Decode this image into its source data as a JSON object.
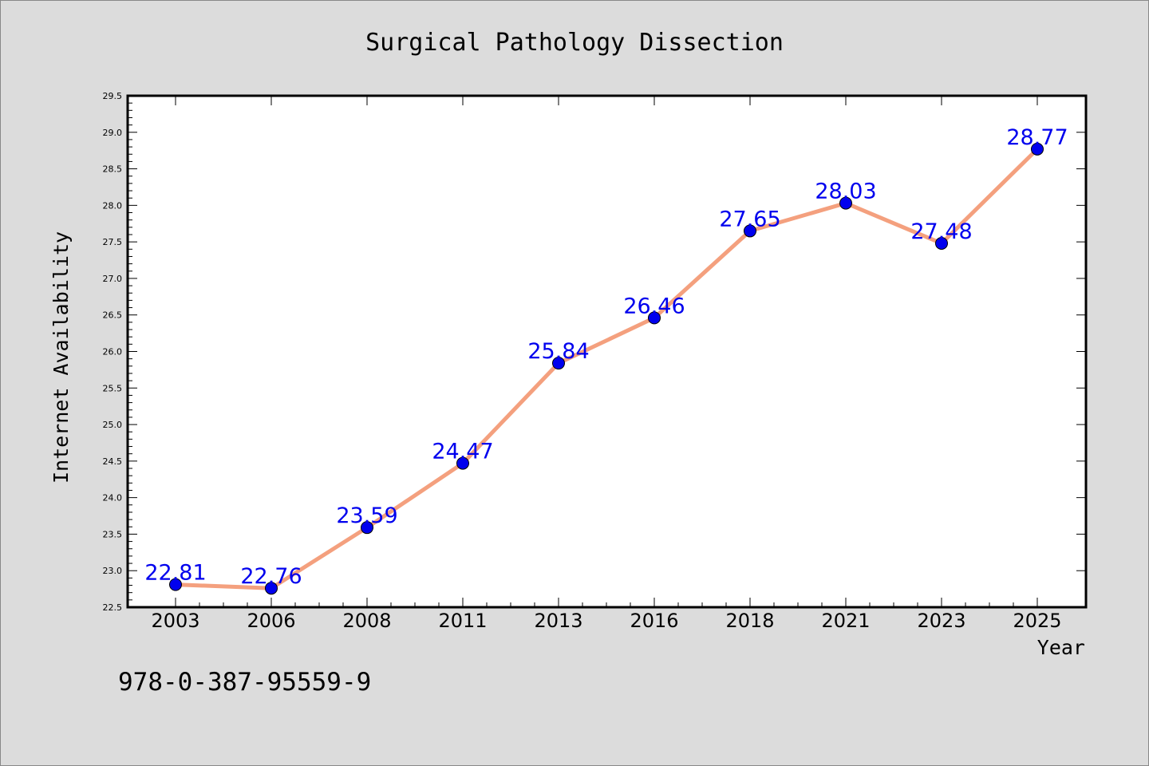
{
  "chart_data": {
    "type": "line",
    "title": "Surgical Pathology Dissection",
    "xlabel": "Year",
    "ylabel": "Internet Availability",
    "categories": [
      "2003",
      "2006",
      "2008",
      "2011",
      "2013",
      "2016",
      "2018",
      "2021",
      "2023",
      "2025"
    ],
    "series": [
      {
        "values": [
          22.81,
          22.76,
          23.59,
          24.47,
          25.84,
          26.46,
          27.65,
          28.03,
          27.48,
          28.77
        ],
        "labels": [
          "22.81",
          "22.76",
          "23.59",
          "24.47",
          "25.84",
          "26.46",
          "27.65",
          "28.03",
          "27.48",
          "28.77"
        ]
      }
    ],
    "ylim": [
      22.5,
      29.5
    ],
    "yticks": [
      "22.5",
      "23.0",
      "23.5",
      "24.0",
      "24.5",
      "25.0",
      "25.5",
      "26.0",
      "26.5",
      "27.0",
      "27.5",
      "28.0",
      "28.5",
      "29.0",
      "29.5"
    ],
    "grid": false,
    "legend": "none",
    "colors": {
      "line": "#f4a07e",
      "marker": "#0000ee",
      "label": "#0000ee",
      "figure_bg": "#dcdcdc",
      "plot_bg": "#ffffff"
    }
  },
  "footer": {
    "isbn": "978-0-387-95559-9"
  }
}
